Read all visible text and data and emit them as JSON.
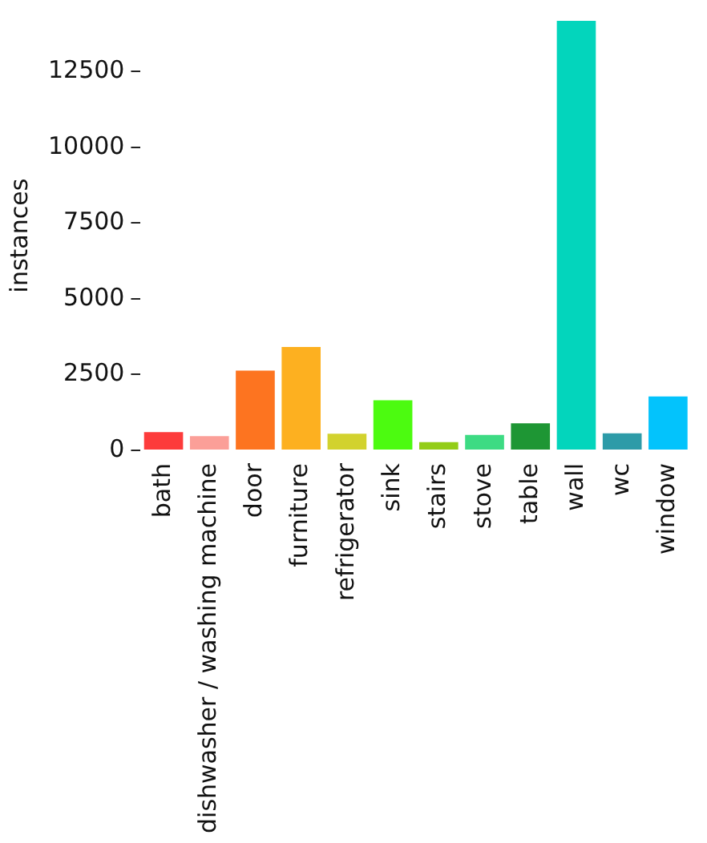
{
  "chart_data": {
    "type": "bar",
    "ylabel": "instances",
    "categories": [
      "bath",
      "dishwasher / washing machine",
      "door",
      "furniture",
      "refrigerator",
      "sink",
      "stairs",
      "stove",
      "table",
      "wall",
      "wc",
      "window"
    ],
    "values": [
      600,
      470,
      2630,
      3410,
      550,
      1650,
      270,
      510,
      890,
      14170,
      560,
      1780
    ],
    "colors": [
      "#fd3b3b",
      "#fb9f98",
      "#fd7420",
      "#fdb020",
      "#d2d22e",
      "#4cfb10",
      "#93cd16",
      "#3ddb83",
      "#1e9634",
      "#03d5bc",
      "#2d9ba8",
      "#03c3fc"
    ],
    "ylim": [
      0,
      14170
    ],
    "yticks": [
      0,
      2500,
      5000,
      7500,
      10000,
      12500
    ],
    "grid": false,
    "legend": false
  }
}
